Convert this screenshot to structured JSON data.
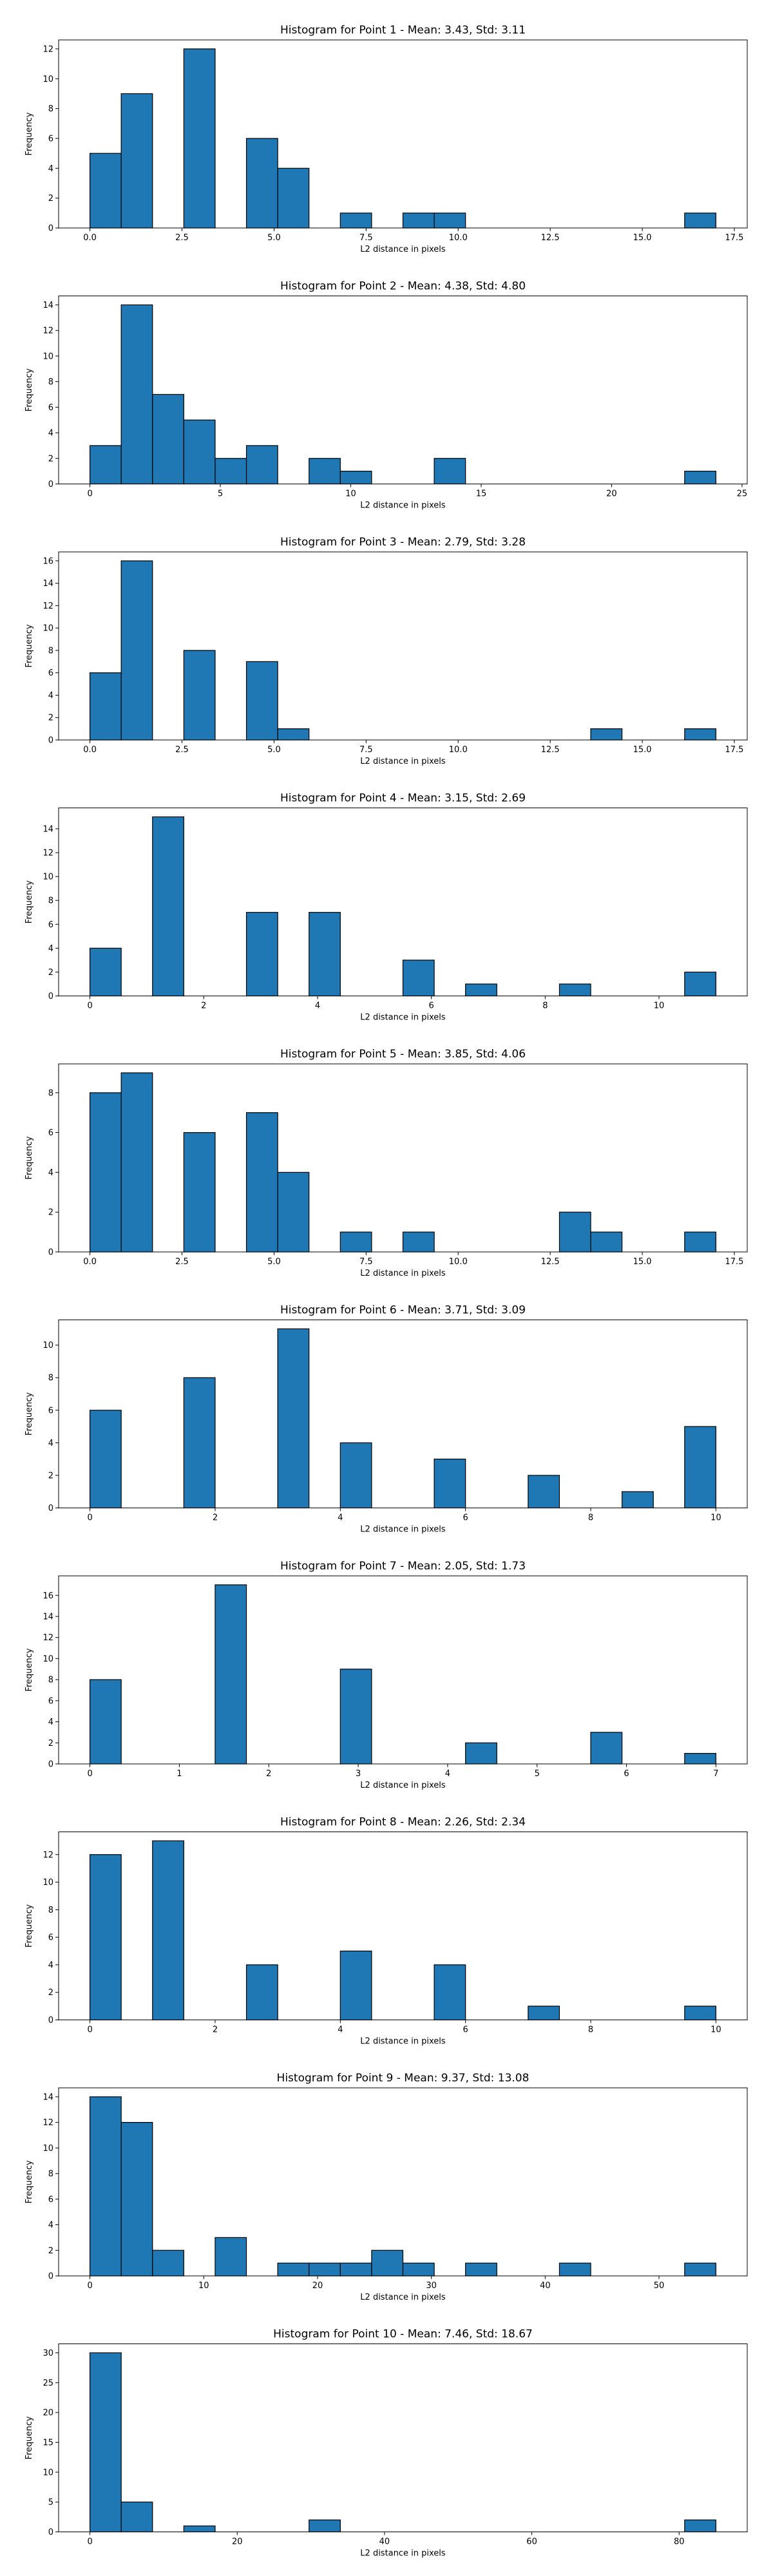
{
  "chart_data": [
    {
      "type": "bar",
      "title": "Histogram for Point 1 - Mean: 3.43, Std: 3.11",
      "xlabel": "L2 distance in pixels",
      "ylabel": "Frequency",
      "xlim": [
        -0.85,
        17.85
      ],
      "ylim": [
        0,
        12.6
      ],
      "xticks": [
        0,
        2.5,
        5,
        7.5,
        10,
        12.5,
        15,
        17.5
      ],
      "xtick_labels": [
        "0.0",
        "2.5",
        "5.0",
        "7.5",
        "10.0",
        "12.5",
        "15.0",
        "17.5"
      ],
      "yticks": [
        0,
        2,
        4,
        6,
        8,
        10,
        12
      ],
      "bin_edges": [
        0.0,
        0.85,
        1.7,
        2.55,
        3.4,
        4.25,
        5.1,
        5.95,
        6.8,
        7.65,
        8.5,
        9.35,
        10.2,
        11.05,
        11.9,
        12.75,
        13.6,
        14.45,
        15.3,
        16.15,
        17.0
      ],
      "counts": [
        5,
        9,
        0,
        12,
        0,
        6,
        4,
        0,
        1,
        0,
        1,
        1,
        0,
        0,
        0,
        0,
        0,
        0,
        0,
        1
      ]
    },
    {
      "type": "bar",
      "title": "Histogram for Point 2 - Mean: 4.38, Std: 4.80",
      "xlabel": "L2 distance in pixels",
      "ylabel": "Frequency",
      "xlim": [
        -1.2,
        25.2
      ],
      "ylim": [
        0,
        14.7
      ],
      "xticks": [
        0,
        5,
        10,
        15,
        20,
        25
      ],
      "xtick_labels": [
        "0",
        "5",
        "10",
        "15",
        "20",
        "25"
      ],
      "yticks": [
        0,
        2,
        4,
        6,
        8,
        10,
        12,
        14
      ],
      "bin_edges": [
        0.0,
        1.2,
        2.4,
        3.6,
        4.8,
        6.0,
        7.2,
        8.4,
        9.6,
        10.8,
        12.0,
        13.2,
        14.4,
        15.6,
        16.8,
        18.0,
        19.2,
        20.4,
        21.6,
        22.8,
        24.0
      ],
      "counts": [
        3,
        14,
        7,
        5,
        2,
        3,
        0,
        2,
        1,
        0,
        0,
        2,
        0,
        0,
        0,
        0,
        0,
        0,
        0,
        1
      ]
    },
    {
      "type": "bar",
      "title": "Histogram for Point 3 - Mean: 2.79, Std: 3.28",
      "xlabel": "L2 distance in pixels",
      "ylabel": "Frequency",
      "xlim": [
        -0.85,
        17.85
      ],
      "ylim": [
        0,
        16.8
      ],
      "xticks": [
        0,
        2.5,
        5,
        7.5,
        10,
        12.5,
        15,
        17.5
      ],
      "xtick_labels": [
        "0.0",
        "2.5",
        "5.0",
        "7.5",
        "10.0",
        "12.5",
        "15.0",
        "17.5"
      ],
      "yticks": [
        0,
        2,
        4,
        6,
        8,
        10,
        12,
        14,
        16
      ],
      "bin_edges": [
        0.0,
        0.85,
        1.7,
        2.55,
        3.4,
        4.25,
        5.1,
        5.95,
        6.8,
        7.65,
        8.5,
        9.35,
        10.2,
        11.05,
        11.9,
        12.75,
        13.6,
        14.45,
        15.3,
        16.15,
        17.0
      ],
      "counts": [
        6,
        16,
        0,
        8,
        0,
        7,
        1,
        0,
        0,
        0,
        0,
        0,
        0,
        0,
        0,
        0,
        1,
        0,
        0,
        1
      ]
    },
    {
      "type": "bar",
      "title": "Histogram for Point 4 - Mean: 3.15, Std: 2.69",
      "xlabel": "L2 distance in pixels",
      "ylabel": "Frequency",
      "xlim": [
        -0.55,
        11.55
      ],
      "ylim": [
        0,
        15.75
      ],
      "xticks": [
        0,
        2,
        4,
        6,
        8,
        10
      ],
      "xtick_labels": [
        "0",
        "2",
        "4",
        "6",
        "8",
        "10"
      ],
      "yticks": [
        0,
        2,
        4,
        6,
        8,
        10,
        12,
        14
      ],
      "bin_edges": [
        0.0,
        0.55,
        1.1,
        1.65,
        2.2,
        2.75,
        3.3,
        3.85,
        4.4,
        4.95,
        5.5,
        6.05,
        6.6,
        7.15,
        7.7,
        8.25,
        8.8,
        9.35,
        9.9,
        10.45,
        11.0
      ],
      "counts": [
        4,
        0,
        15,
        0,
        0,
        7,
        0,
        7,
        0,
        0,
        3,
        0,
        1,
        0,
        0,
        1,
        0,
        0,
        0,
        2
      ]
    },
    {
      "type": "bar",
      "title": "Histogram for Point 5 - Mean: 3.85, Std: 4.06",
      "xlabel": "L2 distance in pixels",
      "ylabel": "Frequency",
      "xlim": [
        -0.85,
        17.85
      ],
      "ylim": [
        0,
        9.45
      ],
      "xticks": [
        0,
        2.5,
        5,
        7.5,
        10,
        12.5,
        15,
        17.5
      ],
      "xtick_labels": [
        "0.0",
        "2.5",
        "5.0",
        "7.5",
        "10.0",
        "12.5",
        "15.0",
        "17.5"
      ],
      "yticks": [
        0,
        2,
        4,
        6,
        8
      ],
      "bin_edges": [
        0.0,
        0.85,
        1.7,
        2.55,
        3.4,
        4.25,
        5.1,
        5.95,
        6.8,
        7.65,
        8.5,
        9.35,
        10.2,
        11.05,
        11.9,
        12.75,
        13.6,
        14.45,
        15.3,
        16.15,
        17.0
      ],
      "counts": [
        8,
        9,
        0,
        6,
        0,
        7,
        4,
        0,
        1,
        0,
        1,
        0,
        0,
        0,
        0,
        2,
        1,
        0,
        0,
        1
      ]
    },
    {
      "type": "bar",
      "title": "Histogram for Point 6 - Mean: 3.71, Std: 3.09",
      "xlabel": "L2 distance in pixels",
      "ylabel": "Frequency",
      "xlim": [
        -0.5,
        10.5
      ],
      "ylim": [
        0,
        11.55
      ],
      "xticks": [
        0,
        2,
        4,
        6,
        8,
        10
      ],
      "xtick_labels": [
        "0",
        "2",
        "4",
        "6",
        "8",
        "10"
      ],
      "yticks": [
        0,
        2,
        4,
        6,
        8,
        10
      ],
      "bin_edges": [
        0.0,
        0.5,
        1.0,
        1.5,
        2.0,
        2.5,
        3.0,
        3.5,
        4.0,
        4.5,
        5.0,
        5.5,
        6.0,
        6.5,
        7.0,
        7.5,
        8.0,
        8.5,
        9.0,
        9.5,
        10.0
      ],
      "counts": [
        6,
        0,
        0,
        8,
        0,
        0,
        11,
        0,
        4,
        0,
        0,
        3,
        0,
        0,
        2,
        0,
        0,
        1,
        0,
        5
      ]
    },
    {
      "type": "bar",
      "title": "Histogram for Point 7 - Mean: 2.05, Std: 1.73",
      "xlabel": "L2 distance in pixels",
      "ylabel": "Frequency",
      "xlim": [
        -0.35,
        7.35
      ],
      "ylim": [
        0,
        17.85
      ],
      "xticks": [
        0,
        1,
        2,
        3,
        4,
        5,
        6,
        7
      ],
      "xtick_labels": [
        "0",
        "1",
        "2",
        "3",
        "4",
        "5",
        "6",
        "7"
      ],
      "yticks": [
        0,
        2,
        4,
        6,
        8,
        10,
        12,
        14,
        16
      ],
      "bin_edges": [
        0.0,
        0.35,
        0.7,
        1.05,
        1.4,
        1.75,
        2.1,
        2.45,
        2.8,
        3.15,
        3.5,
        3.85,
        4.2,
        4.55,
        4.9,
        5.25,
        5.6,
        5.95,
        6.3,
        6.65,
        7.0
      ],
      "counts": [
        8,
        0,
        0,
        0,
        17,
        0,
        0,
        0,
        9,
        0,
        0,
        0,
        2,
        0,
        0,
        0,
        3,
        0,
        0,
        1
      ]
    },
    {
      "type": "bar",
      "title": "Histogram for Point 8 - Mean: 2.26, Std: 2.34",
      "xlabel": "L2 distance in pixels",
      "ylabel": "Frequency",
      "xlim": [
        -0.5,
        10.5
      ],
      "ylim": [
        0,
        13.65
      ],
      "xticks": [
        0,
        2,
        4,
        6,
        8,
        10
      ],
      "xtick_labels": [
        "0",
        "2",
        "4",
        "6",
        "8",
        "10"
      ],
      "yticks": [
        0,
        2,
        4,
        6,
        8,
        10,
        12
      ],
      "bin_edges": [
        0.0,
        0.5,
        1.0,
        1.5,
        2.0,
        2.5,
        3.0,
        3.5,
        4.0,
        4.5,
        5.0,
        5.5,
        6.0,
        6.5,
        7.0,
        7.5,
        8.0,
        8.5,
        9.0,
        9.5,
        10.0
      ],
      "counts": [
        12,
        0,
        13,
        0,
        0,
        4,
        0,
        0,
        5,
        0,
        0,
        4,
        0,
        0,
        1,
        0,
        0,
        0,
        0,
        1
      ]
    },
    {
      "type": "bar",
      "title": "Histogram for Point 9 - Mean: 9.37, Std: 13.08",
      "xlabel": "L2 distance in pixels",
      "ylabel": "Frequency",
      "xlim": [
        -2.75,
        57.75
      ],
      "ylim": [
        0,
        14.7
      ],
      "xticks": [
        0,
        10,
        20,
        30,
        40,
        50
      ],
      "xtick_labels": [
        "0",
        "10",
        "20",
        "30",
        "40",
        "50"
      ],
      "yticks": [
        0,
        2,
        4,
        6,
        8,
        10,
        12,
        14
      ],
      "bin_edges": [
        0.0,
        2.75,
        5.5,
        8.25,
        11.0,
        13.75,
        16.5,
        19.25,
        22.0,
        24.75,
        27.5,
        30.25,
        33.0,
        35.75,
        38.5,
        41.25,
        44.0,
        46.75,
        49.5,
        52.25,
        55.0
      ],
      "counts": [
        14,
        12,
        2,
        0,
        3,
        0,
        1,
        1,
        1,
        2,
        1,
        0,
        1,
        0,
        0,
        1,
        0,
        0,
        0,
        1
      ]
    },
    {
      "type": "bar",
      "title": "Histogram for Point 10 - Mean: 7.46, Std: 18.67",
      "xlabel": "L2 distance in pixels",
      "ylabel": "Frequency",
      "xlim": [
        -4.25,
        89.25
      ],
      "ylim": [
        0,
        31.5
      ],
      "xticks": [
        0,
        20,
        40,
        60,
        80
      ],
      "xtick_labels": [
        "0",
        "20",
        "40",
        "60",
        "80"
      ],
      "yticks": [
        0,
        5,
        10,
        15,
        20,
        25,
        30
      ],
      "bin_edges": [
        0.0,
        4.25,
        8.5,
        12.75,
        17.0,
        21.25,
        25.5,
        29.75,
        34.0,
        38.25,
        42.5,
        46.75,
        51.0,
        55.25,
        59.5,
        63.75,
        68.0,
        72.25,
        76.5,
        80.75,
        85.0
      ],
      "counts": [
        30,
        5,
        0,
        1,
        0,
        0,
        0,
        2,
        0,
        0,
        0,
        0,
        0,
        0,
        0,
        0,
        0,
        0,
        0,
        2
      ]
    }
  ],
  "colors": {
    "bar_fill": "#1f77b4",
    "bar_edge": "#000000",
    "axes": "#000000",
    "background": "#ffffff"
  }
}
